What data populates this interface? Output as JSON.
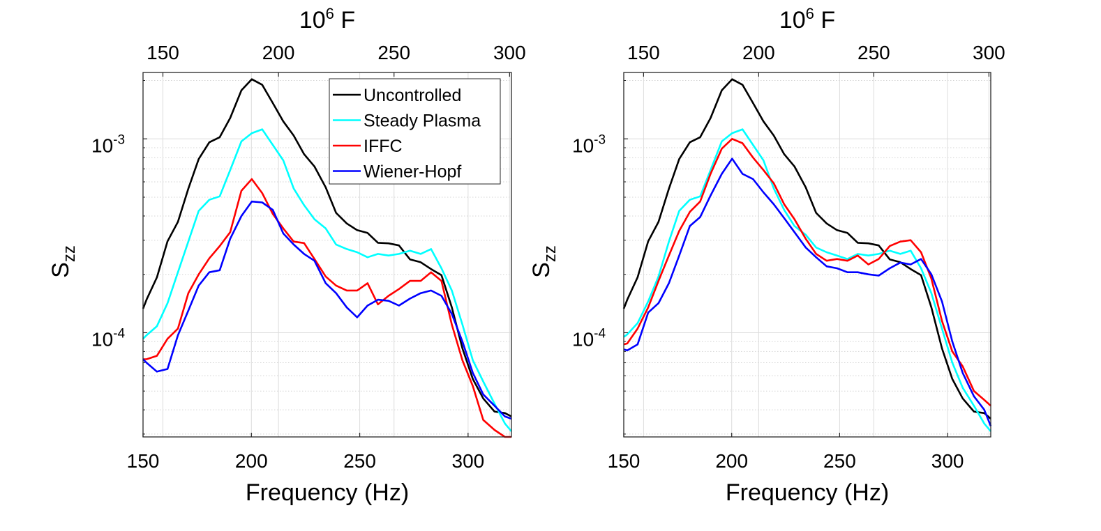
{
  "chart_data": [
    {
      "type": "line",
      "panel": "left",
      "title": "",
      "xlabel": "Frequency (Hz)",
      "ylabel": "S_zz",
      "ylabel_main": "S",
      "ylabel_sub": "zz",
      "xscale": "linear",
      "yscale": "log",
      "xlim": [
        150,
        320
      ],
      "ylim": [
        2.9e-05,
        0.0022
      ],
      "xticks": [
        150,
        200,
        250,
        300
      ],
      "xtick_labels": [
        "150",
        "200",
        "250",
        "300"
      ],
      "yticks": [
        0.0001,
        0.001
      ],
      "ytick_labels": [
        {
          "base": "10",
          "exp": "-4"
        },
        {
          "base": "10",
          "exp": "-3"
        }
      ],
      "top_axis": {
        "label_base": "10",
        "label_exp": "6",
        "label_suffix": " F",
        "xlim": [
          141.4,
          300.8
        ],
        "ticks": [
          150,
          200,
          250,
          300
        ],
        "tick_labels": [
          "150",
          "200",
          "250",
          "300"
        ]
      },
      "grid": true,
      "legend": {
        "placement": "top-right",
        "entries": [
          "Uncontrolled",
          "Steady Plasma",
          "IFFC",
          "Wiener-Hopf"
        ]
      },
      "x": [
        150,
        151.6,
        156.4,
        161.3,
        166.1,
        170.9,
        175.7,
        180.6,
        185.4,
        190.2,
        195.4,
        200.2,
        205,
        209.9,
        214.7,
        219.5,
        224.3,
        229.1,
        234.3,
        239.1,
        244,
        248.8,
        253.6,
        258.4,
        263.3,
        268.1,
        273.2,
        278.1,
        282.9,
        287.7,
        292.5,
        297.4,
        302.2,
        307,
        312.2,
        317,
        320
      ],
      "series": [
        {
          "name": "Uncontrolled",
          "color": "#000000",
          "values": [
            0.000133,
            0.000148,
            0.000193,
            0.000296,
            0.000373,
            0.000553,
            0.000787,
            0.00096,
            0.00102,
            0.00128,
            0.00178,
            0.00203,
            0.0019,
            0.00153,
            0.00123,
            0.00104,
            0.000834,
            0.00072,
            0.000562,
            0.000415,
            0.000366,
            0.000338,
            0.000327,
            0.000291,
            0.000289,
            0.000282,
            0.000239,
            0.000231,
            0.000213,
            0.000198,
            0.000135,
            8.3e-05,
            5.77e-05,
            4.58e-05,
            3.92e-05,
            3.85e-05,
            3.7e-05
          ]
        },
        {
          "name": "Steady Plasma",
          "color": "#00ffff",
          "values": [
            9.3e-05,
            9.7e-05,
            0.000108,
            0.000142,
            0.000205,
            0.000295,
            0.000425,
            0.000485,
            0.000505,
            0.00069,
            0.00097,
            0.00107,
            0.00112,
            0.00093,
            0.000775,
            0.000555,
            0.000455,
            0.000385,
            0.000345,
            0.000285,
            0.00027,
            0.00026,
            0.000245,
            0.000255,
            0.00025,
            0.000255,
            0.000265,
            0.000255,
            0.00027,
            0.000215,
            0.000165,
            0.00011,
            7.2e-05,
            5.6e-05,
            4.3e-05,
            3.4e-05,
            3.1e-05
          ]
        },
        {
          "name": "IFFC",
          "color": "#ff0000",
          "values": [
            7.3e-05,
            7.3e-05,
            7.6e-05,
            9.3e-05,
            0.000105,
            0.00016,
            0.0002,
            0.000242,
            0.00028,
            0.00033,
            0.00054,
            0.00062,
            0.000525,
            0.00041,
            0.000345,
            0.000295,
            0.00029,
            0.00024,
            0.000195,
            0.000175,
            0.000165,
            0.000165,
            0.00018,
            0.00014,
            0.000155,
            0.000168,
            0.000185,
            0.000185,
            0.000205,
            0.000185,
            0.00011,
            7.2e-05,
            5.3e-05,
            3.55e-05,
            3.15e-05,
            2.9e-05,
            2.9e-05
          ]
        },
        {
          "name": "Wiener-Hopf",
          "color": "#0000ff",
          "values": [
            7.3e-05,
            7e-05,
            6.3e-05,
            6.5e-05,
            9.7e-05,
            0.00013,
            0.000175,
            0.000205,
            0.00021,
            0.000305,
            0.0004,
            0.000475,
            0.00047,
            0.00043,
            0.000325,
            0.000285,
            0.000255,
            0.000235,
            0.00018,
            0.00016,
            0.000135,
            0.00012,
            0.000138,
            0.000148,
            0.000146,
            0.000138,
            0.00015,
            0.00016,
            0.000165,
            0.000155,
            0.000125,
            9e-05,
            6.2e-05,
            4.8e-05,
            4.2e-05,
            3.7e-05,
            3.6e-05
          ]
        }
      ]
    },
    {
      "type": "line",
      "panel": "right",
      "title": "",
      "xlabel": "Frequency (Hz)",
      "ylabel": "S_zz",
      "ylabel_main": "S",
      "ylabel_sub": "zz",
      "xscale": "linear",
      "yscale": "log",
      "xlim": [
        150,
        320
      ],
      "ylim": [
        2.9e-05,
        0.0022
      ],
      "xticks": [
        150,
        200,
        250,
        300
      ],
      "xtick_labels": [
        "150",
        "200",
        "250",
        "300"
      ],
      "yticks": [
        0.0001,
        0.001
      ],
      "ytick_labels": [
        {
          "base": "10",
          "exp": "-4"
        },
        {
          "base": "10",
          "exp": "-3"
        }
      ],
      "top_axis": {
        "label_base": "10",
        "label_exp": "6",
        "label_suffix": " F",
        "xlim": [
          141.4,
          300.8
        ],
        "ticks": [
          150,
          200,
          250,
          300
        ],
        "tick_labels": [
          "150",
          "200",
          "250",
          "300"
        ]
      },
      "grid": true,
      "legend": null,
      "x": [
        150,
        151.6,
        156.4,
        161.3,
        166.1,
        170.9,
        175.7,
        180.6,
        185.4,
        190.2,
        195.4,
        200.2,
        205,
        209.9,
        214.7,
        219.5,
        224.3,
        229.1,
        234.3,
        239.1,
        244,
        248.8,
        253.6,
        258.4,
        263.3,
        268.1,
        273.2,
        278.1,
        282.9,
        287.7,
        292.5,
        297.4,
        302.2,
        307,
        312.2,
        317,
        320
      ],
      "series": [
        {
          "name": "Uncontrolled",
          "color": "#000000",
          "values": [
            0.000133,
            0.000148,
            0.000193,
            0.000296,
            0.000373,
            0.000553,
            0.000787,
            0.00096,
            0.00102,
            0.00128,
            0.00178,
            0.00203,
            0.0019,
            0.00153,
            0.00123,
            0.00104,
            0.000834,
            0.00072,
            0.000562,
            0.000415,
            0.000366,
            0.000338,
            0.000327,
            0.000291,
            0.000289,
            0.000282,
            0.000239,
            0.000231,
            0.000213,
            0.000198,
            0.000135,
            8.3e-05,
            5.77e-05,
            4.58e-05,
            3.92e-05,
            3.85e-05,
            3.6e-05
          ]
        },
        {
          "name": "Steady Plasma",
          "color": "#00ffff",
          "values": [
            9.5e-05,
            9.8e-05,
            0.000112,
            0.000145,
            0.000195,
            0.000295,
            0.000425,
            0.000485,
            0.000505,
            0.00069,
            0.00097,
            0.00107,
            0.00112,
            0.00093,
            0.000775,
            0.000555,
            0.00043,
            0.000355,
            0.00032,
            0.000275,
            0.00026,
            0.00025,
            0.00024,
            0.000255,
            0.00025,
            0.000255,
            0.000265,
            0.000255,
            0.000265,
            0.000215,
            0.00016,
            0.000105,
            7e-05,
            5.2e-05,
            4.2e-05,
            3.4e-05,
            3.1e-05
          ]
        },
        {
          "name": "IFFC",
          "color": "#ff0000",
          "values": [
            8.7e-05,
            8.8e-05,
            0.000105,
            0.000135,
            0.000185,
            0.00025,
            0.000335,
            0.00042,
            0.000475,
            0.00066,
            0.00089,
            0.001,
            0.00095,
            0.0008,
            0.00069,
            0.00059,
            0.00046,
            0.000385,
            0.000305,
            0.000255,
            0.000235,
            0.00024,
            0.000235,
            0.00025,
            0.000225,
            0.00024,
            0.00028,
            0.000295,
            0.0003,
            0.00026,
            0.00019,
            0.000115,
            8e-05,
            6.7e-05,
            5e-05,
            4.5e-05,
            4.2e-05
          ]
        },
        {
          "name": "Wiener-Hopf",
          "color": "#0000ff",
          "values": [
            8.2e-05,
            8.1e-05,
            8.7e-05,
            0.000127,
            0.000142,
            0.00018,
            0.00025,
            0.000355,
            0.000395,
            0.00051,
            0.00066,
            0.00079,
            0.00066,
            0.00062,
            0.00053,
            0.00046,
            0.00039,
            0.00033,
            0.000275,
            0.000245,
            0.00022,
            0.000215,
            0.000205,
            0.000205,
            0.0002,
            0.000197,
            0.000215,
            0.00023,
            0.000225,
            0.00024,
            0.0002,
            0.000145,
            9e-05,
            6.2e-05,
            4.7e-05,
            4e-05,
            3.3e-05
          ]
        }
      ]
    }
  ]
}
